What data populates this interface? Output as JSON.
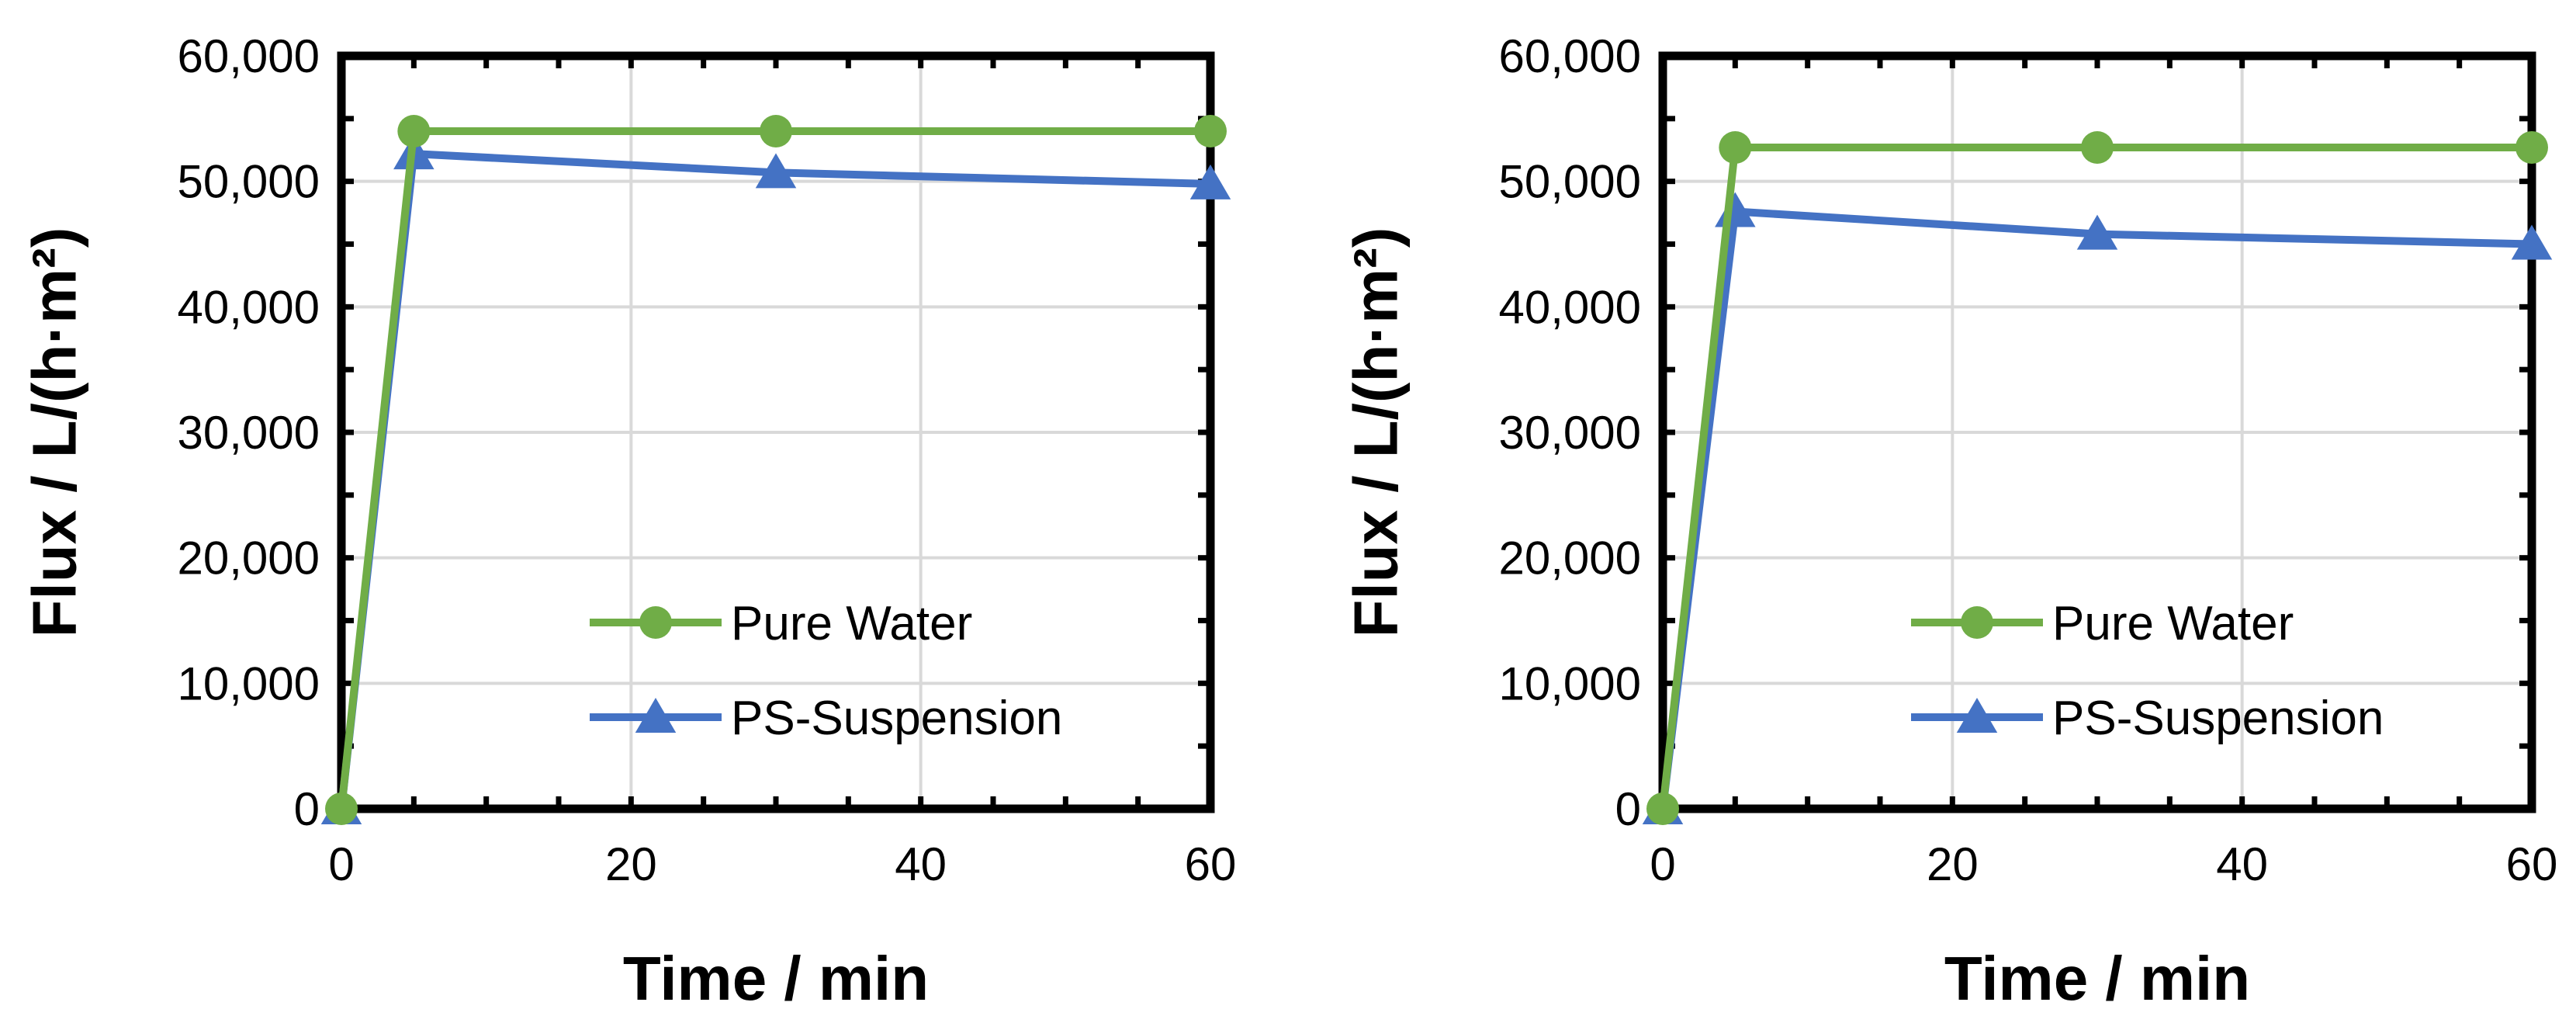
{
  "chart_data": [
    {
      "type": "line",
      "xlabel": "Time / min",
      "ylabel": "Flux / L/(h·m²)",
      "xlim": [
        0,
        60
      ],
      "ylim": [
        0,
        60000
      ],
      "xticks": [
        0,
        20,
        40,
        60
      ],
      "xtick_labels": [
        "0",
        "20",
        "40",
        "60"
      ],
      "yticks": [
        0,
        10000,
        20000,
        30000,
        40000,
        50000,
        60000
      ],
      "ytick_labels": [
        "0",
        "10,000",
        "20,000",
        "30,000",
        "40,000",
        "50,000",
        "60,000"
      ],
      "grid": true,
      "legend_position": "lower-right",
      "series": [
        {
          "name": "Pure Water",
          "marker": "circle",
          "color": "#70AD47",
          "x": [
            0,
            5,
            30,
            60
          ],
          "y": [
            0,
            54000,
            54000,
            54000
          ]
        },
        {
          "name": "PS-Suspension",
          "marker": "triangle",
          "color": "#4472C4",
          "x": [
            0,
            5,
            30,
            60
          ],
          "y": [
            0,
            52200,
            50700,
            49800
          ]
        }
      ]
    },
    {
      "type": "line",
      "xlabel": "Time / min",
      "ylabel": "Flux / L/(h·m²)",
      "xlim": [
        0,
        60
      ],
      "ylim": [
        0,
        60000
      ],
      "xticks": [
        0,
        20,
        40,
        60
      ],
      "xtick_labels": [
        "0",
        "20",
        "40",
        "60"
      ],
      "yticks": [
        0,
        10000,
        20000,
        30000,
        40000,
        50000,
        60000
      ],
      "ytick_labels": [
        "0",
        "10,000",
        "20,000",
        "30,000",
        "40,000",
        "50,000",
        "60,000"
      ],
      "grid": true,
      "legend_position": "lower-right",
      "series": [
        {
          "name": "Pure Water",
          "marker": "circle",
          "color": "#70AD47",
          "x": [
            0,
            5,
            30,
            60
          ],
          "y": [
            0,
            52700,
            52700,
            52700
          ]
        },
        {
          "name": "PS-Suspension",
          "marker": "triangle",
          "color": "#4472C4",
          "x": [
            0,
            5,
            30,
            60
          ],
          "y": [
            0,
            47600,
            45800,
            45000
          ]
        }
      ]
    }
  ]
}
